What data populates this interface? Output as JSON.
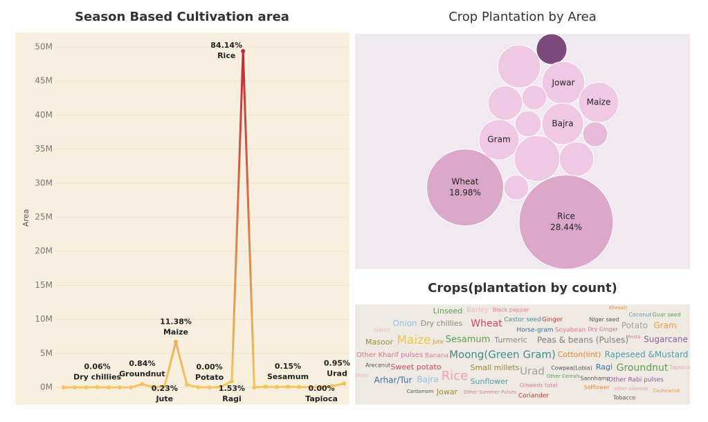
{
  "chart_data": [
    {
      "type": "line",
      "title": "Season Based Cultivation area",
      "y_label": "Area",
      "categories": [
        null,
        null,
        null,
        "Dry chillies",
        null,
        null,
        null,
        "Groundnut",
        null,
        "Jute",
        "Maize",
        null,
        null,
        "Potato",
        null,
        "Ragi",
        "Rice",
        null,
        null,
        null,
        "Sesamum",
        null,
        null,
        "Tapioca",
        null,
        "Urad"
      ],
      "values": [
        0,
        0,
        0,
        35000,
        0,
        0,
        0,
        490000,
        20000,
        135000,
        6680000,
        400000,
        20000,
        0,
        50000,
        900000,
        49400000,
        10000,
        100000,
        50000,
        90000,
        50000,
        50000,
        0,
        200000,
        560000
      ],
      "share_labels": [
        null,
        null,
        null,
        "0.06%",
        null,
        null,
        null,
        "0.84%",
        null,
        "0.23%",
        "11.38%",
        null,
        null,
        "0.00%",
        null,
        "1.53%",
        "84.14%",
        null,
        null,
        null,
        "0.15%",
        null,
        null,
        "0.00%",
        null,
        "0.95%"
      ],
      "ylim": [
        0,
        50000000
      ],
      "yticks": [
        {
          "value": 0,
          "label": "0M"
        },
        {
          "value": 5000000,
          "label": "5M"
        },
        {
          "value": 10000000,
          "label": "10M"
        },
        {
          "value": 15000000,
          "label": "15M"
        },
        {
          "value": 20000000,
          "label": "20M"
        },
        {
          "value": 25000000,
          "label": "25M"
        },
        {
          "value": 30000000,
          "label": "30M"
        },
        {
          "value": 35000000,
          "label": "35M"
        },
        {
          "value": 40000000,
          "label": "40M"
        },
        {
          "value": 45000000,
          "label": "45M"
        },
        {
          "value": 50000000,
          "label": "50M"
        }
      ],
      "grid": true,
      "color_low": "#f3c55c",
      "color_high": "#c0243a"
    },
    {
      "type": "bubble",
      "title": "Crop Plantation by Area",
      "names": [
        null,
        null,
        "Jowar",
        null,
        "Maize",
        null,
        null,
        "Bajra",
        null,
        "Gram",
        null,
        null,
        null,
        "Wheat",
        "Rice"
      ],
      "values": [
        3.0,
        5.9,
        5.9,
        2.0,
        5.2,
        3.8,
        2.2,
        5.5,
        2.0,
        5.2,
        6.7,
        3.8,
        2.0,
        18.98,
        28.44
      ],
      "value_labels": [
        null,
        null,
        null,
        null,
        null,
        null,
        null,
        null,
        null,
        null,
        null,
        null,
        null,
        "18.98%",
        "28.44%"
      ],
      "colors": [
        "#7b4a7b",
        "#efc8e4",
        "#efc8e4",
        "#efc8e4",
        "#efc8e4",
        "#efc8e4",
        "#efc8e4",
        "#efc8e4",
        "#e8bad9",
        "#efc8e4",
        "#efc8e4",
        "#efc8e4",
        "#efc8e4",
        "#dba8c9",
        "#dba8c9"
      ]
    },
    {
      "type": "word_cloud",
      "title": "Crops(plantation by count)",
      "words": [
        {
          "text": "Linseed",
          "color": "#59a14f"
        },
        {
          "text": "Barley",
          "color": "#f1b5c4"
        },
        {
          "text": "Black pepper",
          "color": "#e07b91"
        },
        {
          "text": "Khesari",
          "color": "#f28e2b"
        },
        {
          "text": "Coconut",
          "color": "#4e9fa8"
        },
        {
          "text": "Guar seed",
          "color": "#59a14f"
        },
        {
          "text": "Castor seed",
          "color": "#3b8f8a"
        },
        {
          "text": "Ginger",
          "color": "#c0392b"
        },
        {
          "text": "Niger seed",
          "color": "#555555"
        },
        {
          "text": "Onion",
          "color": "#8ec1e0"
        },
        {
          "text": "Dry chillies",
          "color": "#8a8a8a"
        },
        {
          "text": "Wheat",
          "color": "#d1495b"
        },
        {
          "text": "Potato",
          "color": "#a0a0a0"
        },
        {
          "text": "Gram",
          "color": "#f0a03c"
        },
        {
          "text": "Garlic",
          "color": "#f1b5c4"
        },
        {
          "text": "Horse-gram",
          "color": "#3a6ea5"
        },
        {
          "text": "Soyabean",
          "color": "#e07b91"
        },
        {
          "text": "Dry Ginger",
          "color": "#d37295"
        },
        {
          "text": "Masoor",
          "color": "#9c8a2e"
        },
        {
          "text": "Maize",
          "color": "#edc948"
        },
        {
          "text": "Jute",
          "color": "#c9a227"
        },
        {
          "text": "Sesamum",
          "color": "#59a14f"
        },
        {
          "text": "Turmeric",
          "color": "#8a8a8a"
        },
        {
          "text": "Peas & beans (Pulses)",
          "color": "#7f7f7f"
        },
        {
          "text": "Mesta",
          "color": "#e07b91"
        },
        {
          "text": "Sugarcane",
          "color": "#8e5b9a"
        },
        {
          "text": "Other Kharif pulses",
          "color": "#d37295"
        },
        {
          "text": "Banana",
          "color": "#e07b91"
        },
        {
          "text": "Moong(Green Gram)",
          "color": "#3b8f8a"
        },
        {
          "text": "Cotton(lint)",
          "color": "#e6842a"
        },
        {
          "text": "Rapeseed &Mustard",
          "color": "#4e9fa8"
        },
        {
          "text": "Arecanut",
          "color": "#555555"
        },
        {
          "text": "Sweet potato",
          "color": "#d1495b"
        },
        {
          "text": "Small millets",
          "color": "#9c8a2e"
        },
        {
          "text": "Urad",
          "color": "#a0a0a0"
        },
        {
          "text": "Cowpea(Lobia)",
          "color": "#555555"
        },
        {
          "text": "Ragi",
          "color": "#3a6ea5"
        },
        {
          "text": "Groundnut",
          "color": "#59a14f"
        },
        {
          "text": "Tapioca",
          "color": "#f1a0b4"
        },
        {
          "text": "Moth",
          "color": "#f1b5c4"
        },
        {
          "text": "Arhar/Tur",
          "color": "#3a6ea5"
        },
        {
          "text": "Bajra",
          "color": "#8ec1e0"
        },
        {
          "text": "Rice",
          "color": "#f1a0b4"
        },
        {
          "text": "Sunflower",
          "color": "#4e9fa8"
        },
        {
          "text": "Other Cereals",
          "color": "#59a14f"
        },
        {
          "text": "Sannhamp",
          "color": "#555555"
        },
        {
          "text": "Other Rabi pulses",
          "color": "#8e5b9a"
        },
        {
          "text": "Oilseeds total",
          "color": "#e07b91"
        },
        {
          "text": "Safflower",
          "color": "#f28e2b"
        },
        {
          "text": "other oilseeds",
          "color": "#f1a0b4"
        },
        {
          "text": "Cashewnut",
          "color": "#f0a03c"
        },
        {
          "text": "Cardamom",
          "color": "#555555"
        },
        {
          "text": "Jowar",
          "color": "#9c8a2e"
        },
        {
          "text": "Other Summer Pulses",
          "color": "#e07b91"
        },
        {
          "text": "Coriander",
          "color": "#c0392b"
        },
        {
          "text": "Tobacco",
          "color": "#555555"
        }
      ]
    }
  ]
}
